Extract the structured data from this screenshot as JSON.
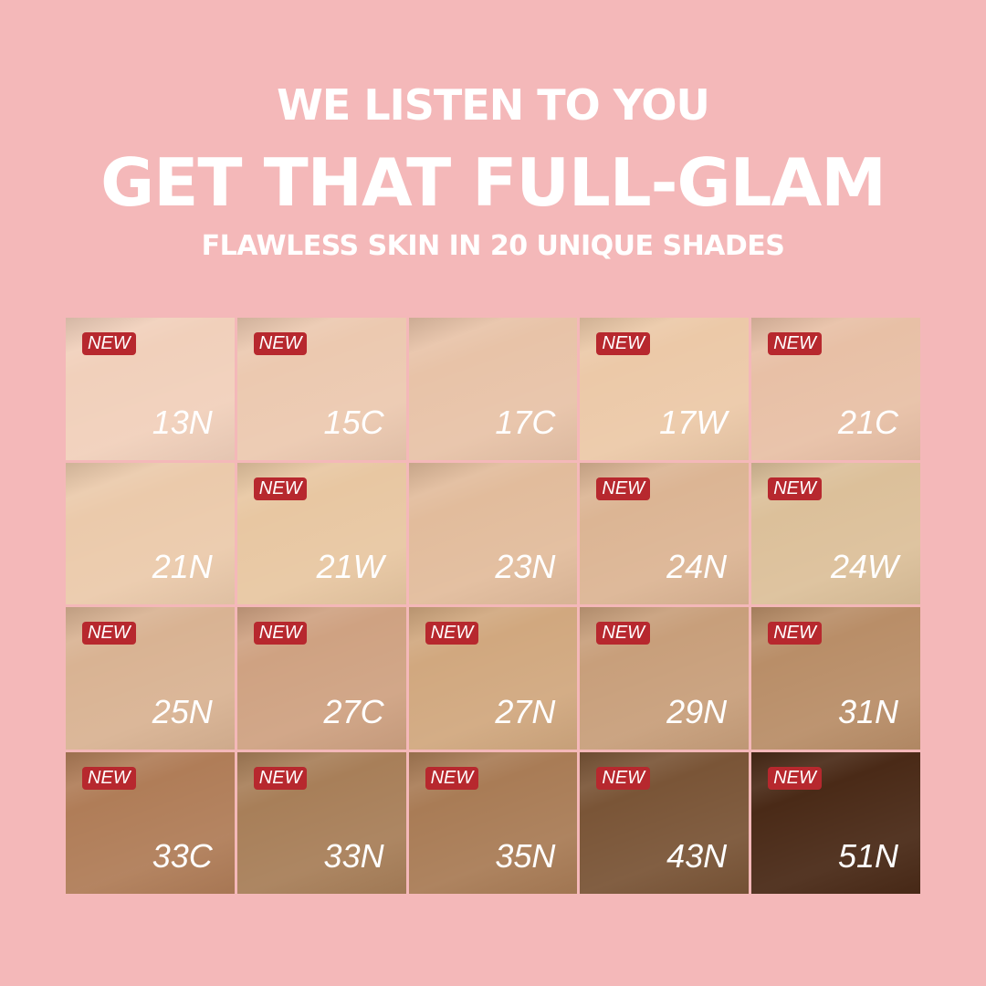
{
  "header": {
    "line1": "WE LISTEN TO YOU",
    "line2": "GET THAT FULL-GLAM",
    "line3": "FLAWLESS SKIN IN 20 UNIQUE SHADES"
  },
  "badge_label": "NEW",
  "colors": {
    "background": "#f4b8b9",
    "badge": "#b7282e"
  },
  "shades": [
    {
      "code": "13N",
      "new": true,
      "color": "#f1d0bb"
    },
    {
      "code": "15C",
      "new": true,
      "color": "#ecc9b0"
    },
    {
      "code": "17C",
      "new": false,
      "color": "#e8c3a8"
    },
    {
      "code": "17W",
      "new": true,
      "color": "#ecc9a8"
    },
    {
      "code": "21C",
      "new": true,
      "color": "#e8c0a6"
    },
    {
      "code": "21N",
      "new": false,
      "color": "#ebcaab"
    },
    {
      "code": "21W",
      "new": true,
      "color": "#e8c7a2"
    },
    {
      "code": "23N",
      "new": false,
      "color": "#e2bc9c"
    },
    {
      "code": "24N",
      "new": true,
      "color": "#dcb594"
    },
    {
      "code": "24W",
      "new": true,
      "color": "#dcc09a"
    },
    {
      "code": "25N",
      "new": true,
      "color": "#d9b393"
    },
    {
      "code": "27C",
      "new": true,
      "color": "#cfa282"
    },
    {
      "code": "27N",
      "new": true,
      "color": "#d1a87f"
    },
    {
      "code": "29N",
      "new": true,
      "color": "#c89f7b"
    },
    {
      "code": "31N",
      "new": true,
      "color": "#b98e68"
    },
    {
      "code": "33C",
      "new": true,
      "color": "#b07d58"
    },
    {
      "code": "33N",
      "new": true,
      "color": "#a87f59"
    },
    {
      "code": "35N",
      "new": true,
      "color": "#a97c56"
    },
    {
      "code": "43N",
      "new": true,
      "color": "#7a5537"
    },
    {
      "code": "51N",
      "new": true,
      "color": "#4a2a17"
    }
  ]
}
